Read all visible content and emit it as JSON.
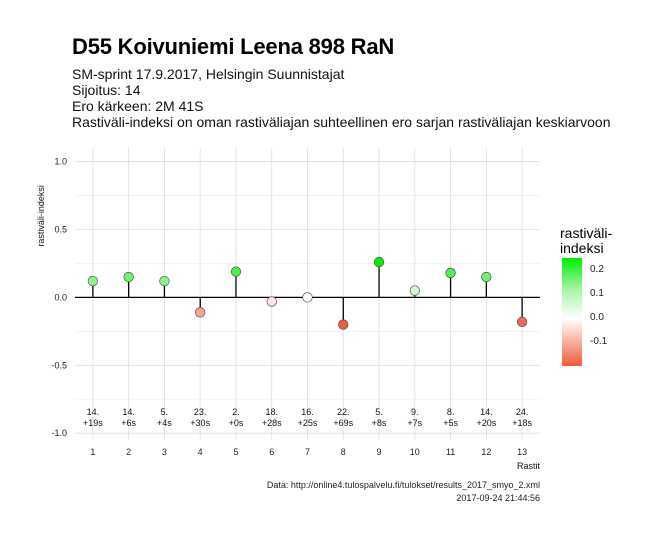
{
  "header": {
    "title": "D55 Koivuniemi Leena 898 RaN",
    "line1": "SM-sprint 17.9.2017, Helsingin Suunnistajat",
    "line2": "Sijoitus: 14",
    "line3": "Ero kärkeen: 2M 41S",
    "line4": "Rastiväli-indeksi on oman rastiväliajan suhteellinen ero sarjan rastiväliajan keskiarvoon"
  },
  "legend": {
    "title_line1": "rastiväli-",
    "title_line2": "indeksi",
    "ticks": [
      "0.2",
      "0.1",
      "0.0",
      "-0.1"
    ]
  },
  "footer": {
    "source": "Data: http://online4.tulospalvelu.fi/tulokset/results_2017_smyo_2.xml",
    "timestamp": "2017-09-24 21:44:56"
  },
  "chart_data": {
    "type": "scatter",
    "xlabel": "Rastit",
    "ylabel": "rastiväli-indeksi",
    "ylim": [
      -1.0,
      1.0
    ],
    "yticks": [
      "1.0",
      "0.5",
      "0.0",
      "-0.5",
      "-1.0"
    ],
    "ytick_values": [
      1.0,
      0.5,
      0.0,
      -0.5,
      -1.0
    ],
    "x": [
      1,
      2,
      3,
      4,
      5,
      6,
      7,
      8,
      9,
      10,
      11,
      12,
      13
    ],
    "values": [
      0.12,
      0.15,
      0.12,
      -0.11,
      0.19,
      -0.03,
      0.0,
      -0.2,
      0.26,
      0.05,
      0.18,
      0.15,
      -0.18
    ],
    "rank_labels": [
      "14.",
      "14.",
      "5.",
      "23.",
      "2.",
      "18.",
      "16.",
      "22.",
      "5.",
      "9.",
      "8.",
      "14.",
      "24."
    ],
    "diff_labels": [
      "+19s",
      "+6s",
      "+4s",
      "+30s",
      "+0s",
      "+28s",
      "+25s",
      "+69s",
      "+8s",
      "+7s",
      "+5s",
      "+20s",
      "+18s"
    ],
    "grid": true,
    "legend_position": "right",
    "colors": {
      "high": "#00ee00",
      "mid": "#ffffff",
      "low": "#f05a3c"
    }
  }
}
